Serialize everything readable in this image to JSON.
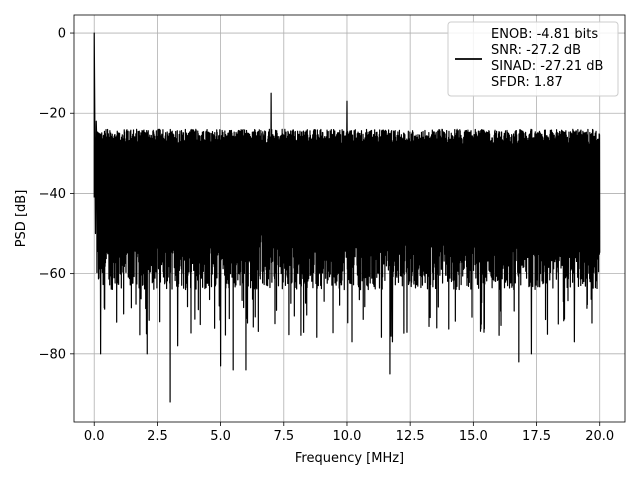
{
  "chart_data": {
    "type": "line",
    "title": "",
    "xlabel": "Frequency [MHz]",
    "ylabel": "PSD [dB]",
    "xlim": [
      -0.8,
      21
    ],
    "ylim": [
      -97,
      4.5
    ],
    "x_ticks": [
      0.0,
      2.5,
      5.0,
      7.5,
      10.0,
      12.5,
      15.0,
      17.5,
      20.0
    ],
    "x_tick_labels": [
      "0.0",
      "2.5",
      "5.0",
      "7.5",
      "10.0",
      "12.5",
      "15.0",
      "17.5",
      "20.0"
    ],
    "y_ticks": [
      0,
      -20,
      -40,
      -60,
      -80
    ],
    "y_tick_labels": [
      "0",
      "−20",
      "−40",
      "−60",
      "−80"
    ],
    "grid": true,
    "legend_position": "top-right",
    "legend_entries": [
      "ENOB: -4.81 bits",
      "SNR: -27.2 dB",
      "SINAD: -27.21 dB",
      "SFDR: 1.87"
    ],
    "series": [
      {
        "color": "#000000",
        "x_range": [
          0.0,
          20.0
        ],
        "noise_floor_band": [
          -62,
          -21
        ],
        "fundamental_peak": {
          "x": 0.0,
          "y": 0.0
        },
        "spurs": [
          {
            "x": 7.0,
            "y": -15
          },
          {
            "x": 10.0,
            "y": -17
          }
        ],
        "notable_dips": [
          {
            "x": 0.25,
            "y": -80
          },
          {
            "x": 2.1,
            "y": -80
          },
          {
            "x": 3.0,
            "y": -92
          },
          {
            "x": 3.3,
            "y": -78
          },
          {
            "x": 5.0,
            "y": -83
          },
          {
            "x": 5.5,
            "y": -84
          },
          {
            "x": 6.0,
            "y": -84
          },
          {
            "x": 10.2,
            "y": -77
          },
          {
            "x": 11.7,
            "y": -85
          },
          {
            "x": 11.8,
            "y": -77
          },
          {
            "x": 16.8,
            "y": -82
          },
          {
            "x": 17.3,
            "y": -80
          },
          {
            "x": 19.0,
            "y": -77
          }
        ]
      }
    ]
  }
}
